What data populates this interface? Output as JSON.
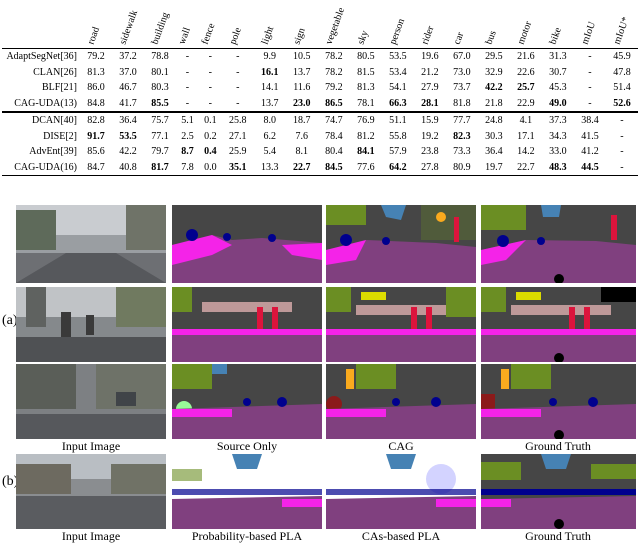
{
  "table": {
    "columns": [
      "road",
      "sidewalk",
      "building",
      "wall",
      "fence",
      "pole",
      "light",
      "sign",
      "vegetable",
      "sky",
      "person",
      "rider",
      "car",
      "bus",
      "motor",
      "bike",
      "mIoU",
      "mIoU*"
    ],
    "groups": [
      {
        "rows": [
          {
            "method": "AdaptSegNet[36]",
            "values": [
              "79.2",
              "37.2",
              "78.8",
              "-",
              "-",
              "-",
              "9.9",
              "10.5",
              "78.2",
              "80.5",
              "53.5",
              "19.6",
              "67.0",
              "29.5",
              "21.6",
              "31.3",
              "-",
              "45.9"
            ],
            "bold": []
          },
          {
            "method": "CLAN[26]",
            "values": [
              "81.3",
              "37.0",
              "80.1",
              "-",
              "-",
              "-",
              "16.1",
              "13.7",
              "78.2",
              "81.5",
              "53.4",
              "21.2",
              "73.0",
              "32.9",
              "22.6",
              "30.7",
              "-",
              "47.8"
            ],
            "bold": [
              6
            ]
          },
          {
            "method": "BLF[21]",
            "values": [
              "86.0",
              "46.7",
              "80.3",
              "-",
              "-",
              "-",
              "14.1",
              "11.6",
              "79.2",
              "81.3",
              "54.1",
              "27.9",
              "73.7",
              "42.2",
              "25.7",
              "45.3",
              "-",
              "51.4"
            ],
            "bold": [
              13,
              14
            ]
          },
          {
            "method": "CAG-UDA(13)",
            "values": [
              "84.8",
              "41.7",
              "85.5",
              "-",
              "-",
              "-",
              "13.7",
              "23.0",
              "86.5",
              "78.1",
              "66.3",
              "28.1",
              "81.8",
              "21.8",
              "22.9",
              "49.0",
              "-",
              "52.6"
            ],
            "bold": [
              2,
              7,
              8,
              10,
              11,
              15,
              17
            ]
          }
        ]
      },
      {
        "rows": [
          {
            "method": "DCAN[40]",
            "values": [
              "82.8",
              "36.4",
              "75.7",
              "5.1",
              "0.1",
              "25.8",
              "8.0",
              "18.7",
              "74.7",
              "76.9",
              "51.1",
              "15.9",
              "77.7",
              "24.8",
              "4.1",
              "37.3",
              "38.4",
              "-"
            ],
            "bold": []
          },
          {
            "method": "DISE[2]",
            "values": [
              "91.7",
              "53.5",
              "77.1",
              "2.5",
              "0.2",
              "27.1",
              "6.2",
              "7.6",
              "78.4",
              "81.2",
              "55.8",
              "19.2",
              "82.3",
              "30.3",
              "17.1",
              "34.3",
              "41.5",
              "-"
            ],
            "bold": [
              0,
              1,
              12
            ]
          },
          {
            "method": "AdvEnt[39]",
            "values": [
              "85.6",
              "42.2",
              "79.7",
              "8.7",
              "0.4",
              "25.9",
              "5.4",
              "8.1",
              "80.4",
              "84.1",
              "57.9",
              "23.8",
              "73.3",
              "36.4",
              "14.2",
              "33.0",
              "41.2",
              "-"
            ],
            "bold": [
              3,
              4,
              9
            ]
          },
          {
            "method": "CAG-UDA(16)",
            "values": [
              "84.7",
              "40.8",
              "81.7",
              "7.8",
              "0.0",
              "35.1",
              "13.3",
              "22.7",
              "84.5",
              "77.6",
              "64.2",
              "27.8",
              "80.9",
              "19.7",
              "22.7",
              "48.3",
              "44.5",
              "-"
            ],
            "bold": [
              2,
              5,
              7,
              8,
              10,
              15,
              16
            ]
          }
        ]
      }
    ]
  },
  "figure": {
    "row_labels": [
      "(a)",
      "(b)"
    ],
    "captions_a": [
      "Input Image",
      "Source Only",
      "CAG",
      "Ground Truth"
    ],
    "captions_b": [
      "Input Image",
      "Probability-based PLA",
      "CAs-based PLA",
      "Ground Truth"
    ]
  },
  "colors": {
    "road": "#80407f",
    "sidewalk": "#f423e8",
    "building": "#464646",
    "vegetation": "#6b8e23",
    "sky": "#4682b4",
    "person": "#dc143c",
    "car": "#00008e",
    "sign": "#dcdc00",
    "light": "#faaa1e",
    "pole": "#999999",
    "fence": "#be9999",
    "wall": "#66669c",
    "void": "#000000"
  }
}
